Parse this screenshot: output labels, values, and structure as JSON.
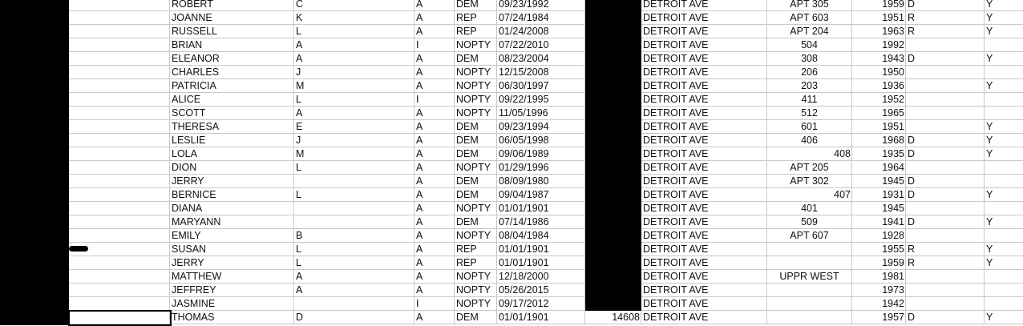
{
  "sheet": {
    "rows": [
      {
        "first": "ROBERT",
        "mi": "C",
        "status": "A",
        "party": "DEM",
        "date": "09/23/1992",
        "num": "",
        "street": "DETROIT AVE",
        "apt": "APT 305",
        "apt_align": "center",
        "year": "1959",
        "vote": "D",
        "flag": "Y"
      },
      {
        "first": "JOANNE",
        "mi": "K",
        "status": "A",
        "party": "REP",
        "date": "07/24/1984",
        "num": "",
        "street": "DETROIT AVE",
        "apt": "APT 603",
        "apt_align": "center",
        "year": "1951",
        "vote": "R",
        "flag": "Y"
      },
      {
        "first": "RUSSELL",
        "mi": "L",
        "status": "A",
        "party": "REP",
        "date": "01/24/2008",
        "num": "",
        "street": "DETROIT AVE",
        "apt": "APT 204",
        "apt_align": "center",
        "year": "1963",
        "vote": "R",
        "flag": "Y"
      },
      {
        "first": "BRIAN",
        "mi": "A",
        "status": "I",
        "party": "NOPTY",
        "date": "07/22/2010",
        "num": "",
        "street": "DETROIT AVE",
        "apt": "504",
        "apt_align": "center",
        "year": "1992",
        "vote": "",
        "flag": ""
      },
      {
        "first": "ELEANOR",
        "mi": "A",
        "status": "A",
        "party": "DEM",
        "date": "08/23/2004",
        "num": "",
        "street": "DETROIT AVE",
        "apt": "308",
        "apt_align": "center",
        "year": "1943",
        "vote": "D",
        "flag": "Y"
      },
      {
        "first": "CHARLES",
        "mi": "J",
        "status": "A",
        "party": "NOPTY",
        "date": "12/15/2008",
        "num": "",
        "street": "DETROIT AVE",
        "apt": "206",
        "apt_align": "center",
        "year": "1950",
        "vote": "",
        "flag": ""
      },
      {
        "first": "PATRICIA",
        "mi": "M",
        "status": "A",
        "party": "NOPTY",
        "date": "06/30/1997",
        "num": "",
        "street": "DETROIT AVE",
        "apt": "203",
        "apt_align": "center",
        "year": "1936",
        "vote": "",
        "flag": "Y"
      },
      {
        "first": "ALICE",
        "mi": "L",
        "status": "I",
        "party": "NOPTY",
        "date": "09/22/1995",
        "num": "",
        "street": "DETROIT AVE",
        "apt": "411",
        "apt_align": "center",
        "year": "1952",
        "vote": "",
        "flag": ""
      },
      {
        "first": "SCOTT",
        "mi": "A",
        "status": "A",
        "party": "NOPTY",
        "date": "11/05/1996",
        "num": "",
        "street": "DETROIT AVE",
        "apt": "512",
        "apt_align": "center",
        "year": "1965",
        "vote": "",
        "flag": ""
      },
      {
        "first": "THERESA",
        "mi": "E",
        "status": "A",
        "party": "DEM",
        "date": "09/23/1994",
        "num": "",
        "street": "DETROIT AVE",
        "apt": "601",
        "apt_align": "center",
        "year": "1951",
        "vote": "",
        "flag": "Y"
      },
      {
        "first": "LESLIE",
        "mi": "J",
        "status": "A",
        "party": "DEM",
        "date": "06/05/1998",
        "num": "",
        "street": "DETROIT AVE",
        "apt": "406",
        "apt_align": "center",
        "year": "1968",
        "vote": "D",
        "flag": "Y"
      },
      {
        "first": "LOLA",
        "mi": "M",
        "status": "A",
        "party": "DEM",
        "date": "09/06/1989",
        "num": "",
        "street": "DETROIT AVE",
        "apt": "408",
        "apt_align": "right",
        "year": "1935",
        "vote": "D",
        "flag": "Y"
      },
      {
        "first": "DION",
        "mi": "L",
        "status": "A",
        "party": "NOPTY",
        "date": "01/29/1996",
        "num": "",
        "street": "DETROIT AVE",
        "apt": "APT 205",
        "apt_align": "center",
        "year": "1964",
        "vote": "",
        "flag": ""
      },
      {
        "first": "JERRY",
        "mi": "",
        "status": "A",
        "party": "DEM",
        "date": "08/09/1980",
        "num": "",
        "street": "DETROIT AVE",
        "apt": "APT 302",
        "apt_align": "center",
        "year": "1945",
        "vote": "D",
        "flag": ""
      },
      {
        "first": "BERNICE",
        "mi": "L",
        "status": "A",
        "party": "DEM",
        "date": "09/04/1987",
        "num": "",
        "street": "DETROIT AVE",
        "apt": "407",
        "apt_align": "right",
        "year": "1931",
        "vote": "D",
        "flag": "Y"
      },
      {
        "first": "DIANA",
        "mi": "",
        "status": "A",
        "party": "NOPTY",
        "date": "01/01/1901",
        "num": "",
        "street": "DETROIT AVE",
        "apt": "401",
        "apt_align": "center",
        "year": "1945",
        "vote": "",
        "flag": ""
      },
      {
        "first": "MARYANN",
        "mi": "",
        "status": "A",
        "party": "DEM",
        "date": "07/14/1986",
        "num": "",
        "street": "DETROIT AVE",
        "apt": "509",
        "apt_align": "center",
        "year": "1941",
        "vote": "D",
        "flag": "Y"
      },
      {
        "first": "EMILY",
        "mi": "B",
        "status": "A",
        "party": "NOPTY",
        "date": "08/04/1984",
        "num": "",
        "street": "DETROIT AVE",
        "apt": "APT 607",
        "apt_align": "center",
        "year": "1928",
        "vote": "",
        "flag": ""
      },
      {
        "first": "SUSAN",
        "mi": "L",
        "status": "A",
        "party": "REP",
        "date": "01/01/1901",
        "num": "",
        "street": "DETROIT AVE",
        "apt": "",
        "apt_align": "center",
        "year": "1955",
        "vote": "R",
        "flag": "Y"
      },
      {
        "first": "JERRY",
        "mi": "L",
        "status": "A",
        "party": "REP",
        "date": "01/01/1901",
        "num": "",
        "street": "DETROIT AVE",
        "apt": "",
        "apt_align": "center",
        "year": "1959",
        "vote": "R",
        "flag": "Y"
      },
      {
        "first": "MATTHEW",
        "mi": "A",
        "status": "A",
        "party": "NOPTY",
        "date": "12/18/2000",
        "num": "",
        "street": "DETROIT AVE",
        "apt": "UPPR WEST",
        "apt_align": "center",
        "year": "1981",
        "vote": "",
        "flag": ""
      },
      {
        "first": "JEFFREY",
        "mi": "A",
        "status": "A",
        "party": "NOPTY",
        "date": "05/26/2015",
        "num": "",
        "street": "DETROIT AVE",
        "apt": "",
        "apt_align": "center",
        "year": "1973",
        "vote": "",
        "flag": ""
      },
      {
        "first": "JASMINE",
        "mi": "",
        "status": "I",
        "party": "NOPTY",
        "date": "09/17/2012",
        "num": "",
        "street": "DETROIT AVE",
        "apt": "",
        "apt_align": "center",
        "year": "1942",
        "vote": "",
        "flag": ""
      },
      {
        "first": "THOMAS",
        "mi": "D",
        "status": "A",
        "party": "DEM",
        "date": "01/01/1901",
        "num": "14608",
        "street": "DETROIT AVE",
        "apt": "",
        "apt_align": "center",
        "year": "1957",
        "vote": "D",
        "flag": "Y"
      }
    ]
  },
  "colors": {
    "gridline": "#c8c8c8",
    "redaction": "#000000"
  }
}
